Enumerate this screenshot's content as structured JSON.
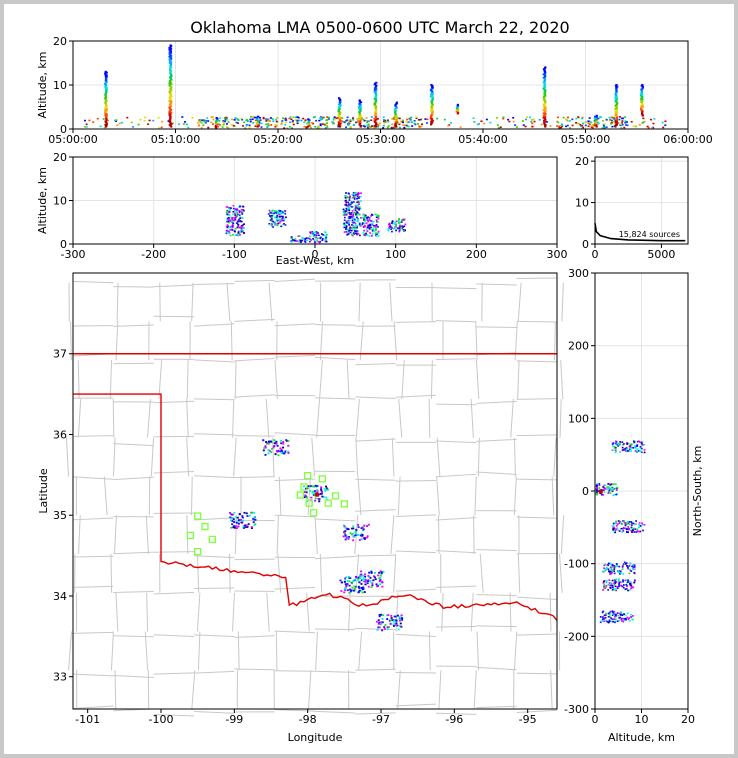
{
  "figure": {
    "title": "Oklahoma LMA 0500-0600 UTC March 22, 2020"
  },
  "chart_data": [
    {
      "id": "time-altitude",
      "type": "scatter",
      "ylabel": "Altitude, km",
      "xlim_minutes": [
        0,
        60
      ],
      "ylim": [
        0,
        20
      ],
      "xticks": [
        {
          "value": 0,
          "label": "05:00:00"
        },
        {
          "value": 10,
          "label": "05:10:00"
        },
        {
          "value": 20,
          "label": "05:20:00"
        },
        {
          "value": 30,
          "label": "05:30:00"
        },
        {
          "value": 40,
          "label": "05:40:00"
        },
        {
          "value": 50,
          "label": "05:50:00"
        },
        {
          "value": 60,
          "label": "06:00:00"
        }
      ],
      "yticks": [
        0,
        10,
        20
      ],
      "flashes": [
        {
          "t": 3.2,
          "zmin": 0.5,
          "zmax": 13.0
        },
        {
          "t": 9.5,
          "zmin": 0.5,
          "zmax": 19.0
        },
        {
          "t": 14.0,
          "zmin": 0.5,
          "zmax": 2.5
        },
        {
          "t": 18.0,
          "zmin": 0.5,
          "zmax": 2.8
        },
        {
          "t": 23.0,
          "zmin": 0.5,
          "zmax": 2.2
        },
        {
          "t": 26.0,
          "zmin": 0.5,
          "zmax": 7.0
        },
        {
          "t": 28.0,
          "zmin": 0.5,
          "zmax": 6.5
        },
        {
          "t": 29.5,
          "zmin": 0.5,
          "zmax": 10.5
        },
        {
          "t": 31.5,
          "zmin": 0.5,
          "zmax": 6.0
        },
        {
          "t": 35.0,
          "zmin": 1.0,
          "zmax": 10.0
        },
        {
          "t": 37.5,
          "zmin": 3.5,
          "zmax": 5.5
        },
        {
          "t": 46.0,
          "zmin": 0.5,
          "zmax": 14.0
        },
        {
          "t": 51.0,
          "zmin": 0.5,
          "zmax": 3.0
        },
        {
          "t": 53.0,
          "zmin": 0.5,
          "zmax": 10.0
        },
        {
          "t": 55.5,
          "zmin": 3.0,
          "zmax": 10.0
        }
      ]
    },
    {
      "id": "ew-altitude",
      "type": "scatter",
      "xlabel": "East-West, km",
      "ylabel": "Altitude, km",
      "xlim": [
        -300,
        300
      ],
      "ylim": [
        0,
        20
      ],
      "xticks": [
        -300,
        -200,
        -100,
        0,
        100,
        200,
        300
      ],
      "yticks": [
        0,
        10,
        20
      ],
      "clusters": [
        {
          "x": -100,
          "zmin": 2,
          "zmax": 9
        },
        {
          "x": -48,
          "zmin": 4,
          "zmax": 8
        },
        {
          "x": -20,
          "zmin": 0.5,
          "zmax": 2
        },
        {
          "x": 3,
          "zmin": 0.5,
          "zmax": 3
        },
        {
          "x": 45,
          "zmin": 2,
          "zmax": 12
        },
        {
          "x": 68,
          "zmin": 2,
          "zmax": 7
        },
        {
          "x": 100,
          "zmin": 3,
          "zmax": 6
        }
      ]
    },
    {
      "id": "altitude-histogram",
      "type": "line",
      "label": "15,824 sources",
      "xlim": [
        0,
        7000
      ],
      "ylim": [
        0,
        21
      ],
      "xticks": [
        0,
        5000
      ],
      "yticks": [
        0,
        10,
        20
      ],
      "curve": [
        [
          0,
          5
        ],
        [
          100,
          3
        ],
        [
          400,
          2
        ],
        [
          1200,
          1.3
        ],
        [
          2500,
          1
        ],
        [
          5000,
          0.8
        ],
        [
          6800,
          0.8
        ]
      ]
    },
    {
      "id": "plan-view-map",
      "type": "scatter",
      "xlabel": "Longitude",
      "ylabel": "Latitude",
      "xlim": [
        -101.2,
        -94.6
      ],
      "ylim": [
        32.6,
        38.0
      ],
      "xticks": [
        -101,
        -100,
        -99,
        -98,
        -97,
        -96,
        -95
      ],
      "yticks": [
        33,
        34,
        35,
        36,
        37
      ],
      "stations": [
        [
          -99.6,
          34.75
        ],
        [
          -99.5,
          34.99
        ],
        [
          -99.5,
          34.55
        ],
        [
          -99.4,
          34.86
        ],
        [
          -99.3,
          34.7
        ],
        [
          -98.05,
          35.35
        ],
        [
          -98.1,
          35.25
        ],
        [
          -98.0,
          35.49
        ],
        [
          -97.98,
          35.15
        ],
        [
          -97.92,
          35.03
        ],
        [
          -97.8,
          35.45
        ],
        [
          -97.72,
          35.15
        ],
        [
          -97.62,
          35.24
        ],
        [
          -97.5,
          35.14
        ]
      ],
      "source_clusters": [
        {
          "lon": -98.9,
          "lat": 34.95
        },
        {
          "lon": -98.45,
          "lat": 35.85
        },
        {
          "lon": -97.9,
          "lat": 35.28
        },
        {
          "lon": -97.35,
          "lat": 34.8
        },
        {
          "lon": -97.4,
          "lat": 34.15
        },
        {
          "lon": -97.15,
          "lat": 34.22
        },
        {
          "lon": -96.9,
          "lat": 33.68
        }
      ]
    },
    {
      "id": "altitude-ns",
      "type": "scatter",
      "xlabel": "Altitude, km",
      "ylabel": "North-South, km",
      "xlim": [
        0,
        20
      ],
      "ylim": [
        -300,
        300
      ],
      "xticks": [
        0,
        10,
        20
      ],
      "yticks": [
        -300,
        -200,
        -100,
        0,
        100,
        200,
        300
      ],
      "clusters": [
        {
          "z": 7,
          "y": 62
        },
        {
          "z": 1.2,
          "y": 3
        },
        {
          "z": 7,
          "y": -48
        },
        {
          "z": 5,
          "y": -105
        },
        {
          "z": 5,
          "y": -128
        },
        {
          "z": 4.5,
          "y": -172
        }
      ]
    }
  ]
}
